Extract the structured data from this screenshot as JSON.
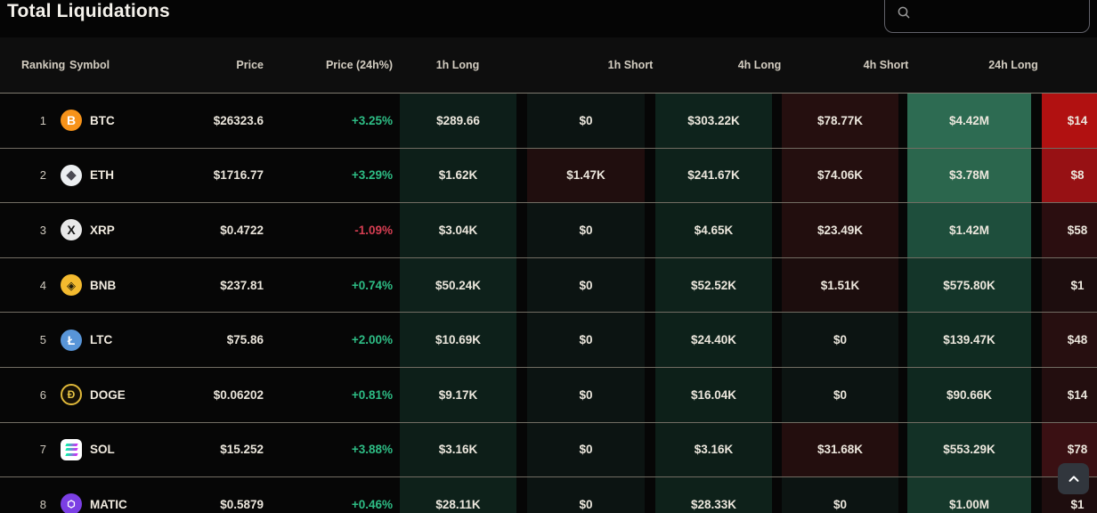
{
  "title": "Total Liquidations",
  "search": {
    "value": "",
    "placeholder": ""
  },
  "columns": [
    "Ranking",
    "Symbol",
    "Price",
    "Price (24h%)",
    "1h Long",
    "1h Short",
    "4h Long",
    "4h Short",
    "24h Long"
  ],
  "colors": {
    "positive": "#2ebd85",
    "negative": "#d63e52",
    "long_bright": "#2d6b52",
    "short_bright": "#b11111"
  },
  "rows": [
    {
      "rank": "1",
      "symbol": "BTC",
      "icon": {
        "style": "glyph",
        "bg": "#f7931a",
        "fg": "#ffffff",
        "glyph": "B"
      },
      "price": "$26323.6",
      "change": "+3.25%",
      "dir": "up",
      "cells": [
        {
          "v": "$289.66",
          "bg": "#0d1e19"
        },
        {
          "v": "$0",
          "bg": "#0c1412"
        },
        {
          "v": "$303.22K",
          "bg": "#0e231c"
        },
        {
          "v": "$78.77K",
          "bg": "#250f0f"
        },
        {
          "v": "$4.42M",
          "bg": "#2d6b52"
        },
        {
          "v": "$14",
          "bg": "#b11111"
        }
      ]
    },
    {
      "rank": "2",
      "symbol": "ETH",
      "icon": {
        "style": "glyph",
        "bg": "#eceff1",
        "fg": "#4a4a52",
        "glyph": "◆"
      },
      "price": "$1716.77",
      "change": "+3.29%",
      "dir": "up",
      "cells": [
        {
          "v": "$1.62K",
          "bg": "#0d1f19"
        },
        {
          "v": "$1.47K",
          "bg": "#200e0e"
        },
        {
          "v": "$241.67K",
          "bg": "#0e221b"
        },
        {
          "v": "$74.06K",
          "bg": "#240f0f"
        },
        {
          "v": "$3.78M",
          "bg": "#2b664d"
        },
        {
          "v": "$8",
          "bg": "#971114"
        }
      ]
    },
    {
      "rank": "3",
      "symbol": "XRP",
      "icon": {
        "style": "glyph",
        "bg": "#e9e9e9",
        "fg": "#161616",
        "glyph": "X"
      },
      "price": "$0.4722",
      "change": "-1.09%",
      "dir": "down",
      "cells": [
        {
          "v": "$3.04K",
          "bg": "#0d1f19"
        },
        {
          "v": "$0",
          "bg": "#0c1412"
        },
        {
          "v": "$4.65K",
          "bg": "#0d2019"
        },
        {
          "v": "$23.49K",
          "bg": "#220e0e"
        },
        {
          "v": "$1.42M",
          "bg": "#1e4e3c"
        },
        {
          "v": "$58",
          "bg": "#2b0e10"
        }
      ]
    },
    {
      "rank": "4",
      "symbol": "BNB",
      "icon": {
        "style": "glyph",
        "bg": "#f3ba2f",
        "fg": "#1f1b0a",
        "glyph": "◈"
      },
      "price": "$237.81",
      "change": "+0.74%",
      "dir": "up",
      "cells": [
        {
          "v": "$50.24K",
          "bg": "#0e211b"
        },
        {
          "v": "$0",
          "bg": "#0c1412"
        },
        {
          "v": "$52.52K",
          "bg": "#0e221b"
        },
        {
          "v": "$1.51K",
          "bg": "#1c0d0d"
        },
        {
          "v": "$575.80K",
          "bg": "#143529"
        },
        {
          "v": "$1",
          "bg": "#1d0d0e"
        }
      ]
    },
    {
      "rank": "5",
      "symbol": "LTC",
      "icon": {
        "style": "glyph",
        "bg": "#5895d8",
        "fg": "#ffffff",
        "glyph": "Ł"
      },
      "price": "$75.86",
      "change": "+2.00%",
      "dir": "up",
      "cells": [
        {
          "v": "$10.69K",
          "bg": "#0d201a"
        },
        {
          "v": "$0",
          "bg": "#0c1412"
        },
        {
          "v": "$24.40K",
          "bg": "#0d211a"
        },
        {
          "v": "$0",
          "bg": "#0c1412"
        },
        {
          "v": "$139.47K",
          "bg": "#102b21"
        },
        {
          "v": "$48",
          "bg": "#270f10"
        }
      ]
    },
    {
      "rank": "6",
      "symbol": "DOGE",
      "icon": {
        "style": "ring",
        "bg": "#171106",
        "fg": "#e8c547",
        "ring": "#e0b93a",
        "glyph": "Ð"
      },
      "price": "$0.06202",
      "change": "+0.81%",
      "dir": "up",
      "cells": [
        {
          "v": "$9.17K",
          "bg": "#0d1f19"
        },
        {
          "v": "$0",
          "bg": "#0c1412"
        },
        {
          "v": "$16.04K",
          "bg": "#0d2019"
        },
        {
          "v": "$0",
          "bg": "#0c1412"
        },
        {
          "v": "$90.66K",
          "bg": "#0f281f"
        },
        {
          "v": "$14",
          "bg": "#230e0f"
        }
      ]
    },
    {
      "rank": "7",
      "symbol": "SOL",
      "icon": {
        "style": "sol",
        "bg": "#ffffff"
      },
      "price": "$15.252",
      "change": "+3.88%",
      "dir": "up",
      "cells": [
        {
          "v": "$3.16K",
          "bg": "#0d1e18"
        },
        {
          "v": "$0",
          "bg": "#0c1412"
        },
        {
          "v": "$3.16K",
          "bg": "#0d1e18"
        },
        {
          "v": "$31.68K",
          "bg": "#230e0e"
        },
        {
          "v": "$553.29K",
          "bg": "#133126"
        },
        {
          "v": "$78",
          "bg": "#3a1013"
        }
      ]
    },
    {
      "rank": "8",
      "symbol": "MATIC",
      "icon": {
        "style": "matic",
        "bg": "#7b3fe4",
        "fg": "#ffffff"
      },
      "price": "$0.5879",
      "change": "+0.46%",
      "dir": "up",
      "cells": [
        {
          "v": "$28.11K",
          "bg": "#0e211a"
        },
        {
          "v": "$0",
          "bg": "#0c1412"
        },
        {
          "v": "$28.33K",
          "bg": "#0e211a"
        },
        {
          "v": "$0",
          "bg": "#0c1412"
        },
        {
          "v": "$1.00M",
          "bg": "#16382b"
        },
        {
          "v": "$1",
          "bg": "#1e0d0e"
        }
      ]
    }
  ]
}
